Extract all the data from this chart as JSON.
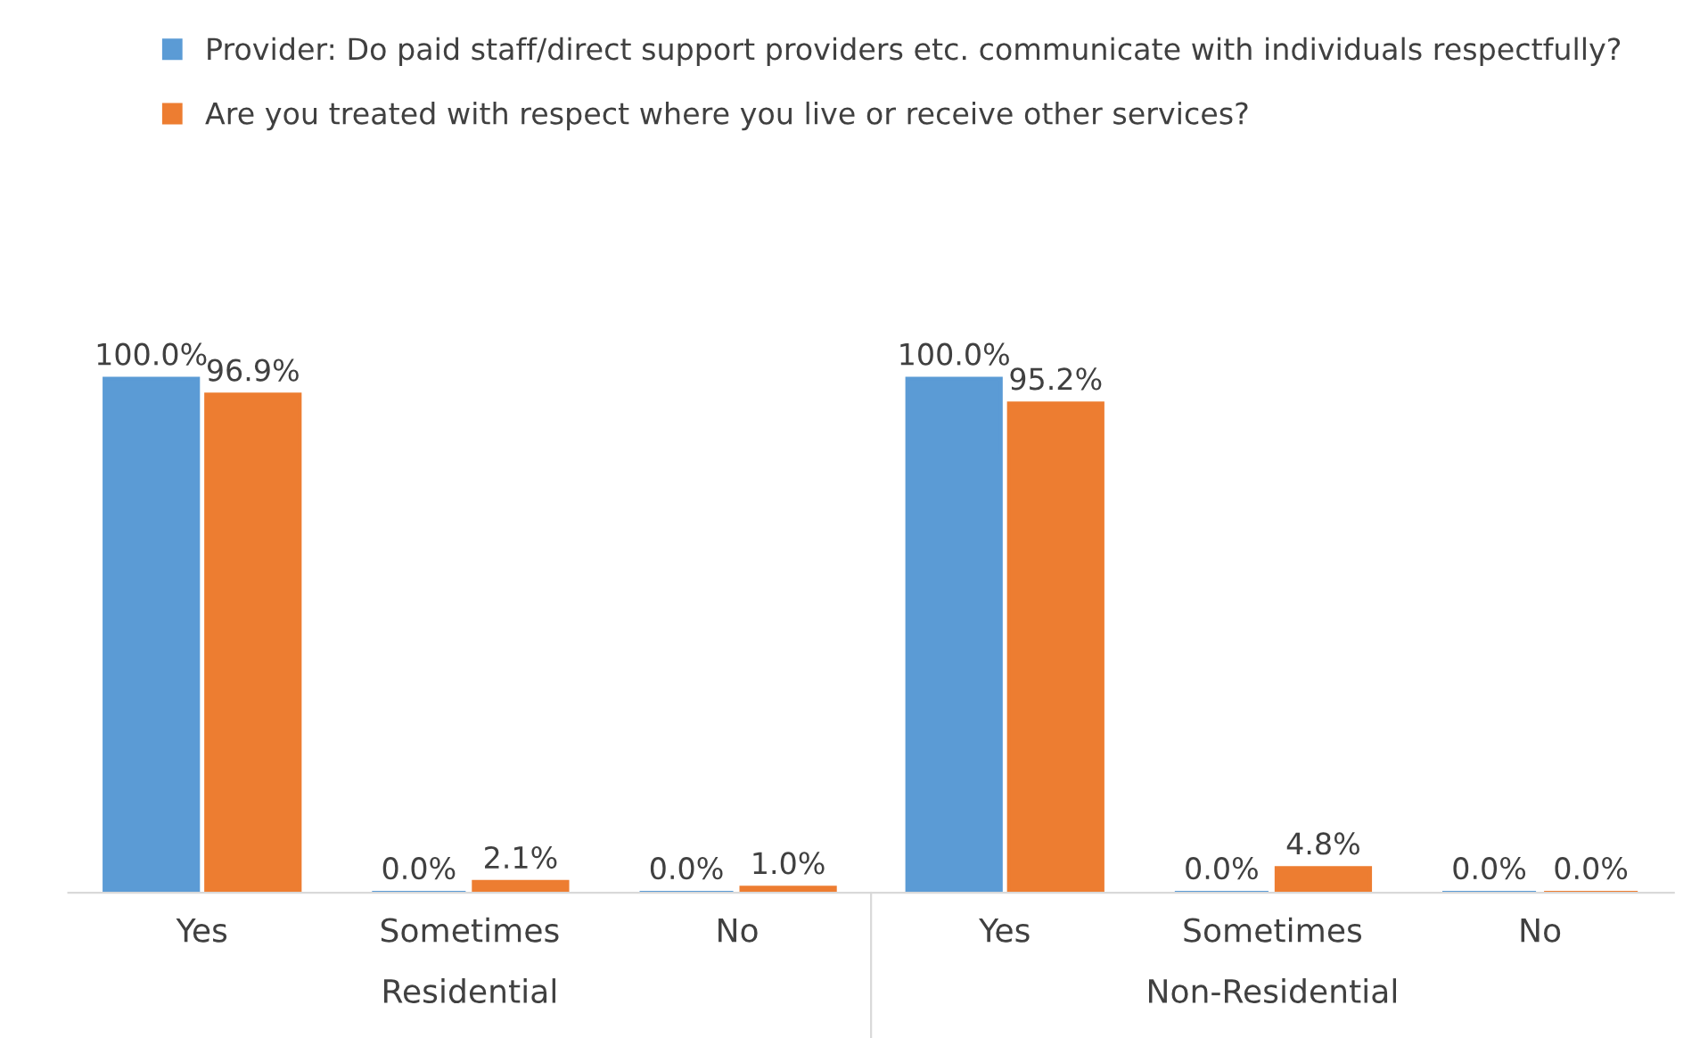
{
  "chart_data": [
    {
      "type": "bar",
      "xlabel": "Residential",
      "categories": [
        "Yes",
        "Sometimes",
        "No"
      ],
      "legend": "top",
      "tick_labels": "x",
      "series": [
        {
          "name": "Provider: Do paid staff/direct support providers etc. communicate with individuals respectfully?",
          "color": "#5b9bd5",
          "values": [
            100.0,
            0.0,
            0.0
          ],
          "value_labels": [
            "100.0%",
            "0.0%",
            "0.0%"
          ]
        },
        {
          "name": "Are you treated with respect where you live or receive other services?",
          "color": "#ed7d31",
          "values": [
            96.9,
            2.1,
            1.0
          ],
          "value_labels": [
            "96.9%",
            "2.1%",
            "1.0%"
          ]
        }
      ]
    },
    {
      "type": "bar",
      "xlabel": "Non-Residential",
      "categories": [
        "Yes",
        "Sometimes",
        "No"
      ],
      "tick_labels": "x",
      "series": [
        {
          "color": "#5b9bd5",
          "values": [
            100.0,
            0.0,
            0.0
          ],
          "value_labels": [
            "100.0%",
            "0.0%",
            "0.0%"
          ]
        },
        {
          "color": "#ed7d31",
          "values": [
            95.2,
            4.8,
            0.0
          ],
          "value_labels": [
            "95.2%",
            "4.8%",
            "0.0%"
          ]
        }
      ]
    }
  ]
}
